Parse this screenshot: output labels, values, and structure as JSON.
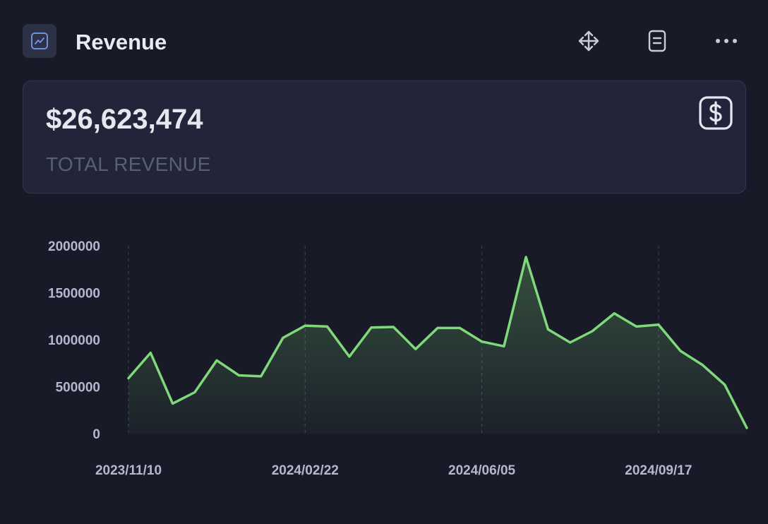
{
  "header": {
    "title": "Revenue",
    "icons": {
      "app": "trend-chart-icon",
      "move": "move-arrows-icon",
      "notes": "document-icon",
      "more": "more-dots-icon"
    }
  },
  "summary": {
    "value": "$26,623,474",
    "label": "TOTAL REVENUE",
    "icon": "dollar-icon"
  },
  "colors": {
    "background": "#181a27",
    "card": "#22243a",
    "line": "#7fd87a",
    "accent": "#5b7fd6"
  },
  "chart_data": {
    "type": "area",
    "title": "",
    "xlabel": "",
    "ylabel": "",
    "ylim": [
      0,
      2000000
    ],
    "y_ticks": [
      0,
      500000,
      1000000,
      1500000,
      2000000
    ],
    "y_tick_labels": [
      "0",
      "500000",
      "1000000",
      "1500000",
      "2000000"
    ],
    "x_tick_labels": [
      "2023/11/10",
      "2024/02/22",
      "2024/06/05",
      "2024/09/17"
    ],
    "x_tick_positions": [
      0,
      8,
      16,
      24
    ],
    "series": [
      {
        "name": "Revenue",
        "values": [
          590000,
          860000,
          320000,
          440000,
          780000,
          620000,
          610000,
          1020000,
          1150000,
          1140000,
          820000,
          1130000,
          1135000,
          900000,
          1125000,
          1125000,
          980000,
          930000,
          1880000,
          1110000,
          970000,
          1090000,
          1280000,
          1140000,
          1160000,
          880000,
          730000,
          520000,
          60000
        ]
      }
    ]
  }
}
